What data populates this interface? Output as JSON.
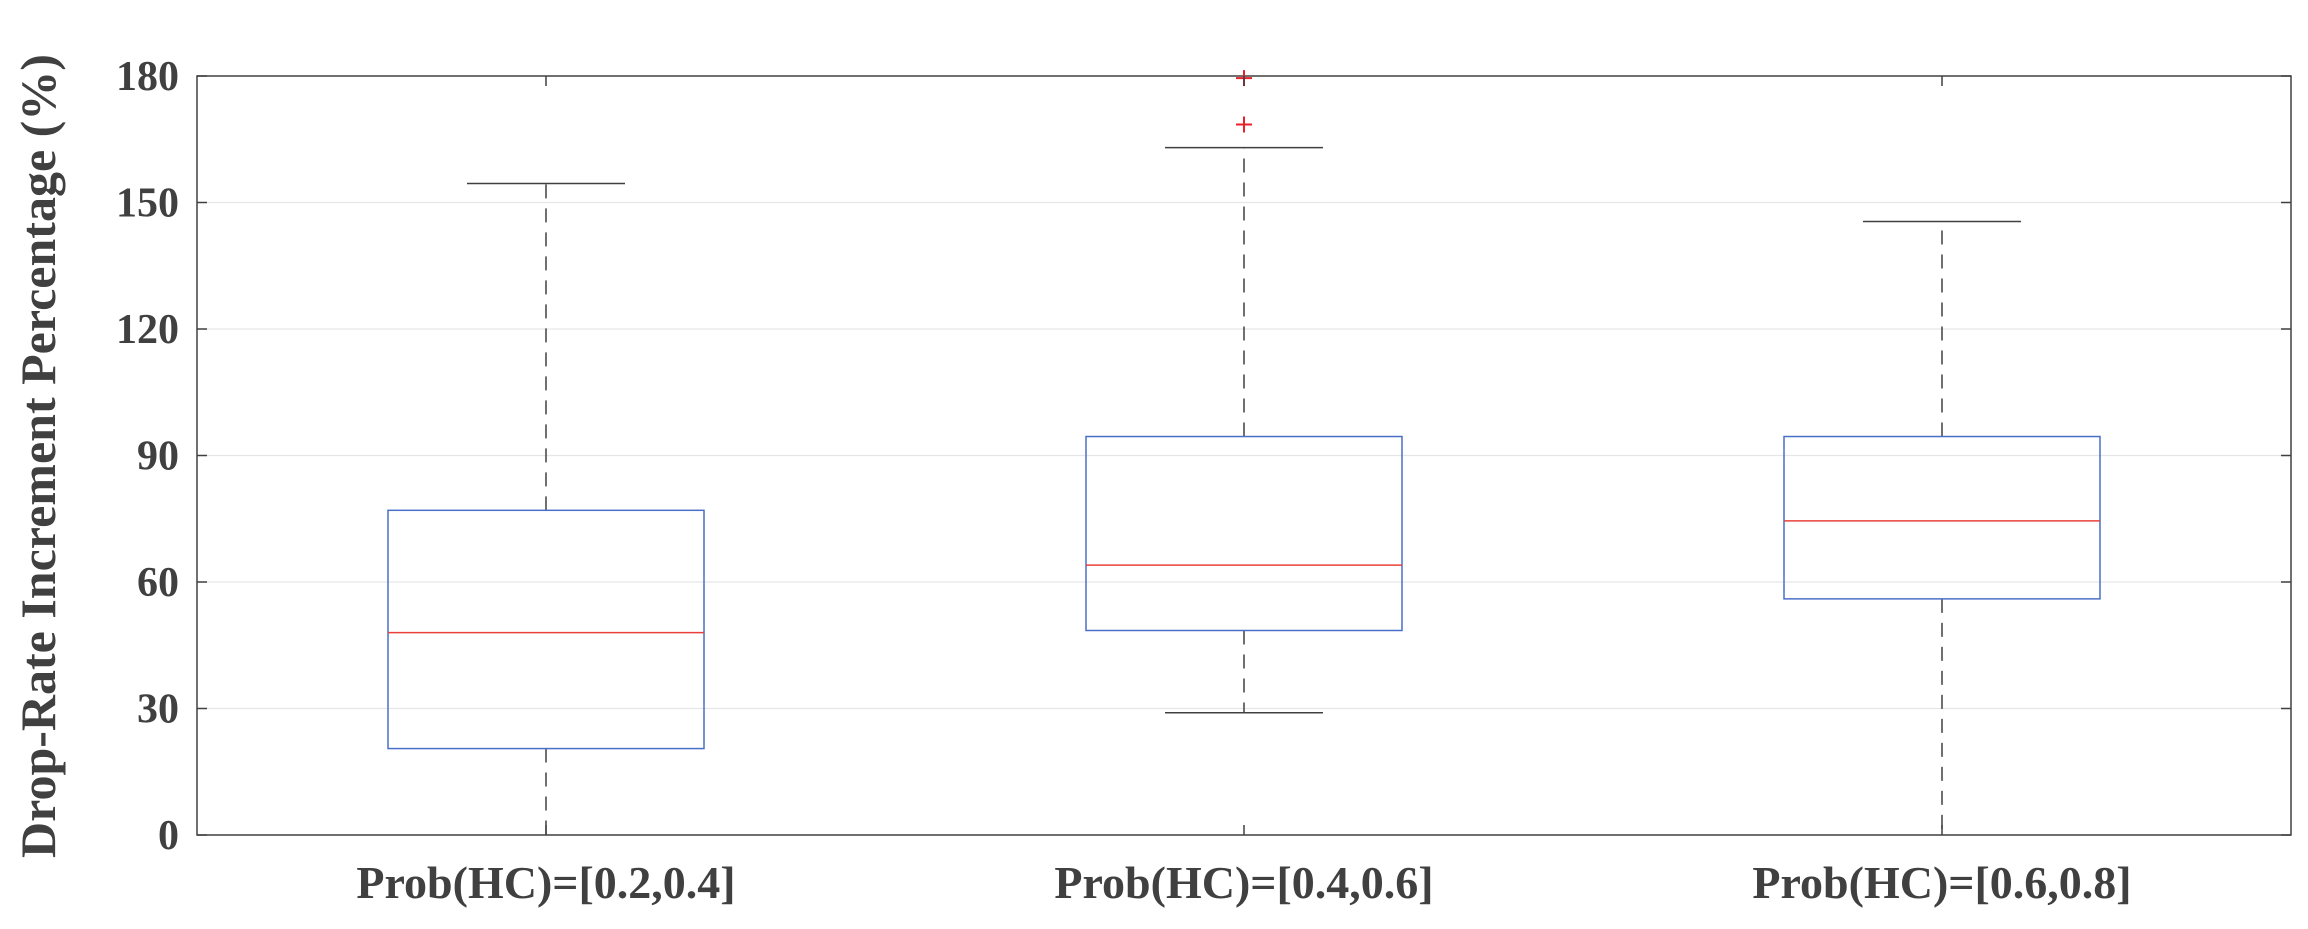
{
  "chart_data": {
    "type": "box",
    "title": "",
    "xlabel": "",
    "ylabel": "Drop-Rate Increment Percentage (%)",
    "ylim": [
      0,
      180
    ],
    "yticks": [
      0,
      30,
      60,
      90,
      120,
      150,
      180
    ],
    "grid": "horizontal",
    "categories": [
      "Prob(HC)=[0.2,0.4]",
      "Prob(HC)=[0.4,0.6]",
      "Prob(HC)=[0.6,0.8]"
    ],
    "boxes": [
      {
        "whisker_low": 0,
        "q1": 20.5,
        "median": 48,
        "q3": 77,
        "whisker_high": 154.5,
        "outliers": []
      },
      {
        "whisker_low": 29,
        "q1": 48.5,
        "median": 64,
        "q3": 94.5,
        "whisker_high": 163,
        "outliers": [
          168.5,
          179.5
        ]
      },
      {
        "whisker_low": 0,
        "q1": 56,
        "median": 74.5,
        "q3": 94.5,
        "whisker_high": 145.5,
        "outliers": []
      }
    ],
    "colors": {
      "box": "#4a6fc7",
      "median": "#e8403a",
      "whisker": "#404040",
      "outlier": "#e8202a",
      "grid": "#e6e6e6",
      "axis": "#404040"
    }
  }
}
